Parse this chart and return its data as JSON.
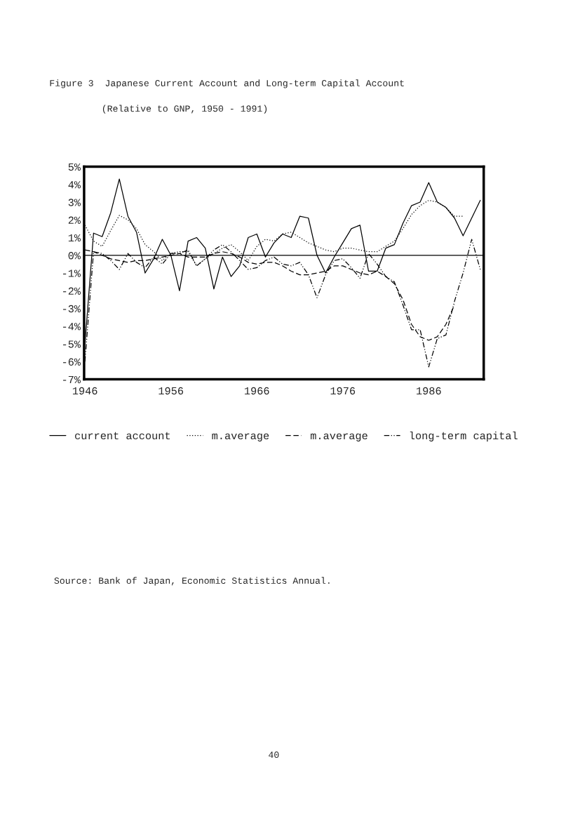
{
  "chart_data": {
    "type": "line",
    "title": "Figure 3  Japanese Current Account and Long-term Capital Account",
    "subtitle": "(Relative to GNP, 1950 - 1991)",
    "x": [
      1946,
      1947,
      1948,
      1949,
      1950,
      1951,
      1952,
      1953,
      1954,
      1955,
      1956,
      1957,
      1958,
      1959,
      1960,
      1961,
      1962,
      1963,
      1964,
      1965,
      1966,
      1967,
      1968,
      1969,
      1970,
      1971,
      1972,
      1973,
      1974,
      1975,
      1976,
      1977,
      1978,
      1979,
      1980,
      1981,
      1982,
      1983,
      1984,
      1985,
      1986,
      1987,
      1988,
      1989,
      1990,
      1991,
      1992
    ],
    "series": [
      {
        "name": "current account",
        "color": "#000000",
        "line_style": "solid",
        "values": [
          -5.0,
          1.25,
          1.05,
          2.4,
          4.3,
          2.2,
          1.3,
          -1.0,
          -0.2,
          0.9,
          0.0,
          -2.0,
          0.8,
          1.0,
          0.4,
          -1.9,
          -0.1,
          -1.2,
          -0.6,
          1.0,
          1.2,
          -0.1,
          0.7,
          1.2,
          1.0,
          2.2,
          2.1,
          0.0,
          -1.0,
          -0.1,
          0.7,
          1.5,
          1.7,
          -0.9,
          -0.9,
          0.4,
          0.6,
          1.8,
          2.8,
          3.0,
          4.1,
          3.0,
          2.7,
          2.1,
          1.1,
          2.1,
          3.1
        ]
      },
      {
        "name": "m.average",
        "color": "#000000",
        "line_style": "dotted",
        "values": [
          1.7,
          0.8,
          0.5,
          1.4,
          2.25,
          2.0,
          1.5,
          0.6,
          0.2,
          -0.3,
          0.1,
          0.2,
          0.2,
          -0.6,
          -0.2,
          0.1,
          0.4,
          0.6,
          0.2,
          -0.3,
          0.5,
          0.9,
          0.8,
          1.2,
          1.3,
          1.0,
          0.7,
          0.5,
          0.3,
          0.2,
          0.4,
          0.4,
          0.3,
          0.2,
          0.2,
          0.5,
          0.8,
          1.5,
          2.3,
          2.8,
          3.1,
          3.0,
          2.7,
          2.2,
          2.2,
          null,
          null
        ]
      },
      {
        "name": "m.average",
        "color": "#000000",
        "line_style": "dashed",
        "values": [
          0.3,
          0.2,
          0.0,
          -0.2,
          -0.3,
          -0.4,
          -0.3,
          -0.3,
          -0.2,
          -0.1,
          0.0,
          0.1,
          -0.1,
          -0.1,
          -0.1,
          0.1,
          0.2,
          0.1,
          -0.1,
          -0.4,
          -0.5,
          -0.4,
          -0.4,
          -0.6,
          -0.9,
          -1.1,
          -1.1,
          -1.0,
          -0.9,
          -0.6,
          -0.6,
          -0.8,
          -1.0,
          -1.1,
          -0.9,
          -1.2,
          -1.6,
          -2.5,
          -3.9,
          -4.6,
          -4.8,
          -4.6,
          -3.9,
          -2.8,
          null,
          null,
          null
        ]
      },
      {
        "name": "long-term capital",
        "color": "#000000",
        "line_style": "dashdot",
        "values": [
          -6.0,
          0.2,
          0.1,
          -0.3,
          -0.8,
          0.1,
          -0.4,
          -0.7,
          -0.1,
          -0.5,
          0.1,
          0.1,
          0.3,
          -0.6,
          -0.2,
          0.3,
          0.6,
          0.2,
          -0.3,
          -0.8,
          -0.7,
          -0.3,
          -0.1,
          -0.5,
          -0.6,
          -0.4,
          -1.1,
          -2.4,
          -1.1,
          -0.3,
          -0.2,
          -0.7,
          -1.3,
          0.1,
          -0.5,
          -1.2,
          -1.5,
          -2.8,
          -4.2,
          -4.2,
          -6.3,
          -4.7,
          -4.5,
          -2.6,
          -1.0,
          0.9,
          -0.8
        ]
      }
    ],
    "xlim": [
      1945.9,
      1992.4
    ],
    "xticks": [
      1946,
      1956,
      1966,
      1976,
      1986
    ],
    "ylim": [
      -7,
      5
    ],
    "yticks": [
      {
        "value": 5,
        "label": "5%"
      },
      {
        "value": 4,
        "label": "4%"
      },
      {
        "value": 3,
        "label": "3%"
      },
      {
        "value": 2,
        "label": "2%"
      },
      {
        "value": 1,
        "label": "1%"
      },
      {
        "value": 0,
        "label": "0%"
      },
      {
        "value": -1,
        "label": "-1%"
      },
      {
        "value": -2,
        "label": "-2%"
      },
      {
        "value": -3,
        "label": "-3%"
      },
      {
        "value": -4,
        "label": "-4%"
      },
      {
        "value": -5,
        "label": "-5%"
      },
      {
        "value": -6,
        "label": "-6%"
      },
      {
        "value": -7,
        "label": "-7%"
      }
    ],
    "ref_lines": [
      {
        "axis": "y",
        "value": 0,
        "color": "#000000",
        "line_style": "solid"
      }
    ],
    "grid": false,
    "legend": "bottom",
    "annotations": [
      "Source: Bank of Japan, Economic Statistics Annual.",
      "40"
    ]
  }
}
